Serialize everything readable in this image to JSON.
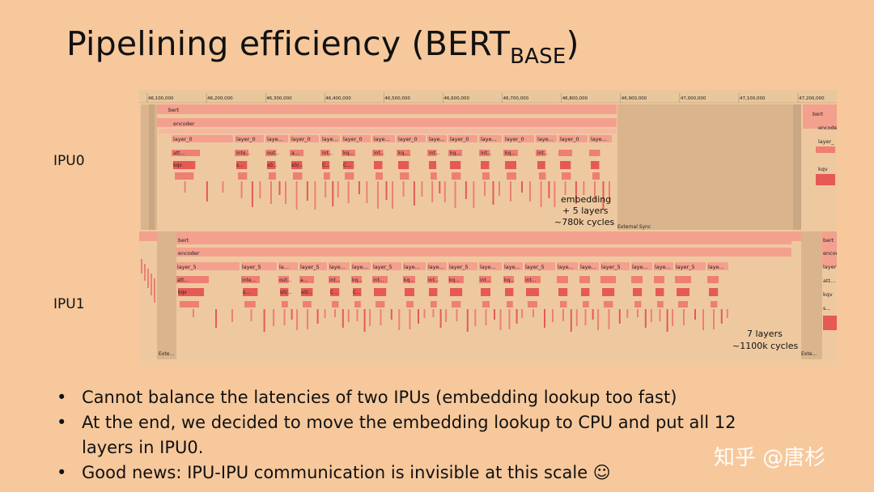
{
  "slide": {
    "title_main": "Pipelining efficiency (BERT",
    "title_sub": "BASE",
    "title_close": ")"
  },
  "ipu_labels": {
    "ipu0": "IPU0",
    "ipu1": "IPU1"
  },
  "timeline": {
    "ticks": [
      "46,100,000",
      "46,200,000",
      "46,300,000",
      "46,400,000",
      "46,500,000",
      "46,600,000",
      "46,700,000",
      "46,800,000",
      "46,900,000",
      "47,000,000",
      "47,100,000",
      "47,200,000"
    ]
  },
  "ipu0_trace": {
    "row_labels": [
      "bert",
      "encoder"
    ],
    "edge_labels": [
      "bert",
      "encoder",
      "layer_",
      "kqv",
      "s..."
    ],
    "layer_labels": [
      "layer_0",
      "layer_0",
      "laye...",
      "layer_0",
      "laye...",
      "layer_0",
      "laye...",
      "layer_0",
      "laye...",
      "layer_0",
      "laye...",
      "layer_0",
      "laye...",
      "layer_0",
      "laye..."
    ],
    "sub_labels": [
      "att...",
      "inte...",
      "out...",
      "a...",
      "int...",
      "kq...",
      "int...",
      "kq...",
      "int...",
      "kq...",
      "int...",
      "kq...",
      "int..."
    ],
    "small_labels": [
      "kqv",
      "s...",
      "s0...",
      "s0/...",
      "C...",
      "C..."
    ],
    "sync_label": "External Sync",
    "annotation": [
      "embedding",
      "+ 5 layers",
      "~780k cycles"
    ]
  },
  "ipu1_trace": {
    "row_labels": [
      "bert",
      "encoder"
    ],
    "edge_labels": [
      "bert",
      "encoder",
      "layer",
      "att...",
      "kqv",
      "s..."
    ],
    "layer_labels": [
      "layer_5",
      "layer_5",
      "la...",
      "layer_5",
      "laye...",
      "laye...",
      "layer_5",
      "laye...",
      "laye...",
      "layer_5",
      "laye...",
      "laye...",
      "layer_5",
      "laye...",
      "laye...",
      "layer_5",
      "laye...",
      "laye...",
      "layer_5",
      "laye..."
    ],
    "sub_labels": [
      "att...",
      "inte...",
      "out...",
      "a...",
      "int...",
      "kq...",
      "int...",
      "kq...",
      "int...",
      "kq...",
      "int...",
      "kq...",
      "int..."
    ],
    "small_labels": [
      "kqv",
      "s...",
      "s0/...",
      "s0/...",
      "C...",
      "C..."
    ],
    "ext_labels": [
      "Exte...",
      "Exte..."
    ],
    "annotation": [
      "7 layers",
      "~1100k cycles"
    ]
  },
  "bullets": [
    "Cannot balance the latencies of two IPUs (embedding lookup too fast)",
    "At the end, we decided to move the embedding lookup to CPU and put all 12\nlayers in IPU0.",
    "Good news: IPU-IPU communication is invisible at this scale ☺"
  ],
  "bullet_symbol": "•",
  "watermark": "知乎 @唐杉",
  "colors": {
    "background": "#f6c89c",
    "panel": "#f0ca9e",
    "bar_light": "#f4a08e",
    "bar_mid": "#ee7f72",
    "bar_dark": "#e55a55",
    "idle": "#d9b48c"
  }
}
